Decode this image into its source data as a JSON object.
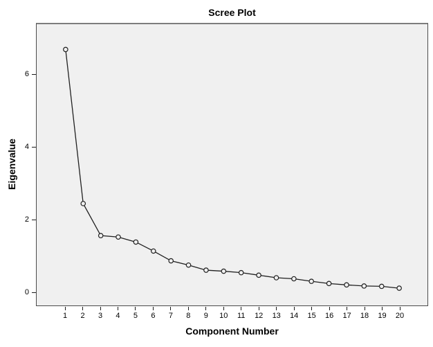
{
  "figure": {
    "kind": "spss-output-chart"
  },
  "chart_data": {
    "type": "line",
    "title": "Scree Plot",
    "xlabel": "Component Number",
    "ylabel": "Eigenvalue",
    "x": [
      1,
      2,
      3,
      4,
      5,
      6,
      7,
      8,
      9,
      10,
      11,
      12,
      13,
      14,
      15,
      16,
      17,
      18,
      19,
      20
    ],
    "values": [
      6.73,
      2.45,
      1.56,
      1.52,
      1.38,
      1.13,
      0.86,
      0.74,
      0.6,
      0.57,
      0.53,
      0.46,
      0.39,
      0.36,
      0.29,
      0.23,
      0.19,
      0.16,
      0.15,
      0.1
    ],
    "x_ticks": [
      1,
      2,
      3,
      4,
      5,
      6,
      7,
      8,
      9,
      10,
      11,
      12,
      13,
      14,
      15,
      16,
      17,
      18,
      19,
      20
    ],
    "y_ticks": [
      0,
      2,
      4,
      6
    ],
    "xlim": [
      -0.65,
      21.61
    ],
    "ylim": [
      -0.38,
      7.43
    ],
    "grid": false,
    "legend": "none",
    "marker": "open-circle",
    "colors": {
      "line": "#1f1f1f",
      "marker_stroke": "#1f1f1f",
      "marker_fill": "#f0f0f0",
      "plot_bg": "#f0f0f0",
      "plot_border": "#4a4a4a",
      "text": "#000000"
    }
  }
}
